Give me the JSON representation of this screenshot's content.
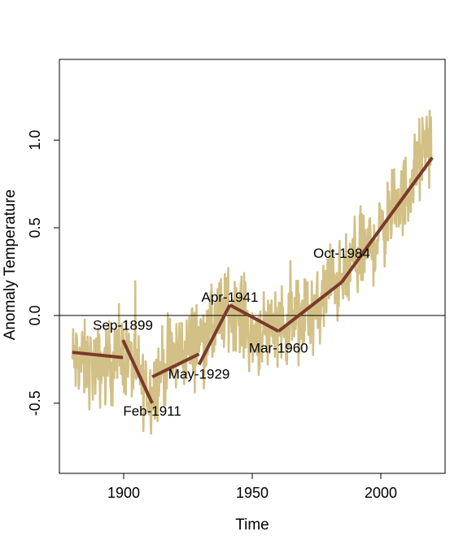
{
  "chart_data": {
    "type": "line",
    "title": "",
    "xlabel": "Time",
    "ylabel": "Anomaly Temperature",
    "xlim": [
      1875,
      2025
    ],
    "ylim": [
      -0.9,
      1.46
    ],
    "xticks": [
      1900,
      1950,
      2000
    ],
    "yticks": [
      -0.5,
      0.0,
      0.5,
      1.0
    ],
    "xtick_labels": [
      "1900",
      "1950",
      "2000"
    ],
    "ytick_labels": [
      "-0.5",
      "0.0",
      "0.5",
      "1.0"
    ],
    "reference_line_y": 0.0,
    "grid": false,
    "legend": "none",
    "colors": {
      "series": "#d2c086",
      "fit": "#7b3a2a",
      "reference": "#000000"
    },
    "series": [
      {
        "values_start_year": 1880,
        "values_end_year": 2020,
        "trend_points": [
          [
            1880,
            -0.25
          ],
          [
            1890,
            -0.3
          ],
          [
            1900,
            -0.22
          ],
          [
            1905,
            -0.32
          ],
          [
            1910,
            -0.45
          ],
          [
            1915,
            -0.3
          ],
          [
            1920,
            -0.22
          ],
          [
            1925,
            -0.18
          ],
          [
            1930,
            -0.12
          ],
          [
            1935,
            -0.08
          ],
          [
            1940,
            0.05
          ],
          [
            1945,
            0.04
          ],
          [
            1950,
            -0.12
          ],
          [
            1955,
            -0.08
          ],
          [
            1960,
            -0.02
          ],
          [
            1965,
            -0.06
          ],
          [
            1970,
            0.02
          ],
          [
            1975,
            0.0
          ],
          [
            1980,
            0.2
          ],
          [
            1985,
            0.18
          ],
          [
            1990,
            0.33
          ],
          [
            1995,
            0.38
          ],
          [
            2000,
            0.48
          ],
          [
            2005,
            0.62
          ],
          [
            2010,
            0.7
          ],
          [
            2015,
            0.88
          ],
          [
            2020,
            1.05
          ]
        ],
        "variability": 0.14
      }
    ],
    "fit_segments": [
      [
        [
          1880,
          -0.21
        ],
        [
          1899.7,
          -0.24
        ]
      ],
      [
        [
          1899.7,
          -0.14
        ],
        [
          1911.1,
          -0.5
        ]
      ],
      [
        [
          1911.1,
          -0.35
        ],
        [
          1929.3,
          -0.22
        ]
      ],
      [
        [
          1929.3,
          -0.28
        ],
        [
          1941.3,
          0.06
        ]
      ],
      [
        [
          1941.3,
          0.06
        ],
        [
          1960.2,
          -0.09
        ]
      ],
      [
        [
          1960.2,
          -0.09
        ],
        [
          1984.8,
          0.19
        ]
      ],
      [
        [
          1984.8,
          0.19
        ],
        [
          2020,
          0.9
        ]
      ]
    ],
    "annotations": [
      {
        "text": "Sep-1899",
        "x": 1899.7,
        "y": -0.06
      },
      {
        "text": "Feb-1911",
        "x": 1911.1,
        "y": -0.55
      },
      {
        "text": "May-1929",
        "x": 1929.3,
        "y": -0.34
      },
      {
        "text": "Apr-1941",
        "x": 1941.3,
        "y": 0.1
      },
      {
        "text": "Mar-1960",
        "x": 1960.2,
        "y": -0.19
      },
      {
        "text": "Oct-1984",
        "x": 1984.8,
        "y": 0.35
      }
    ]
  }
}
